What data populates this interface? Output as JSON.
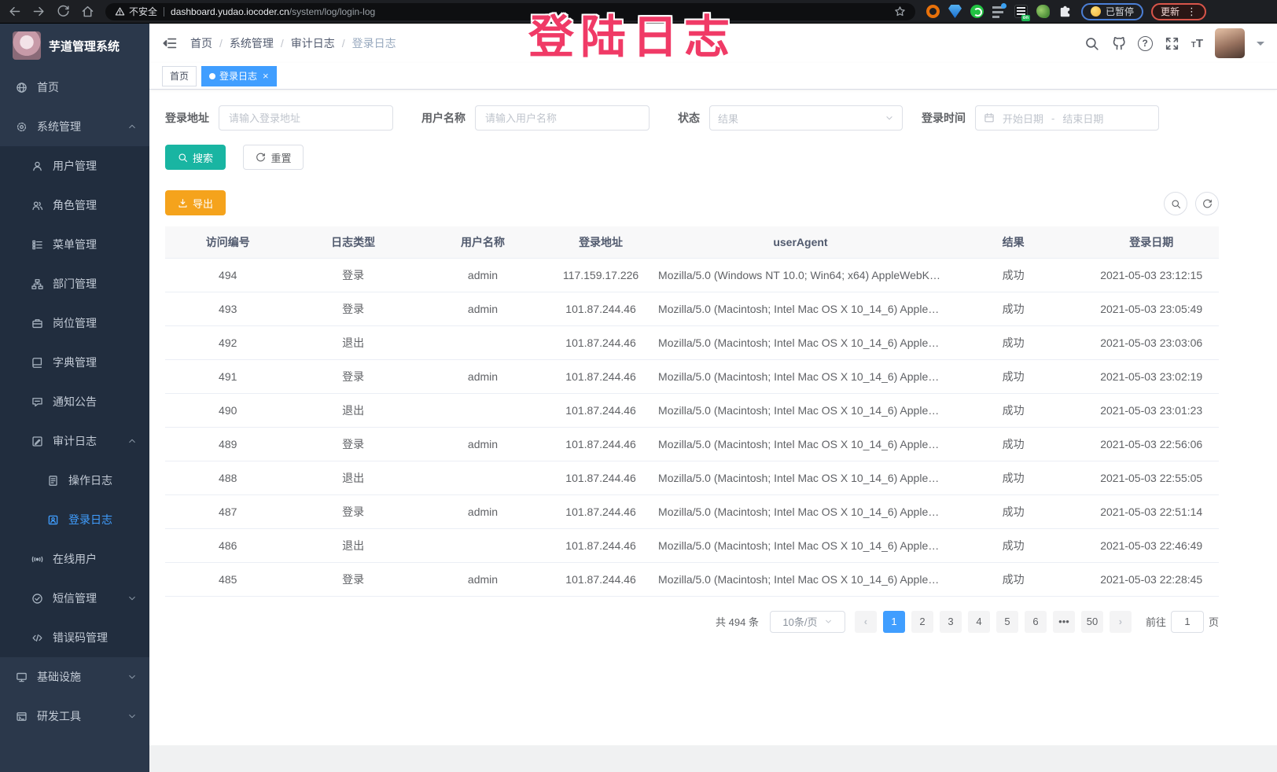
{
  "browser": {
    "security_warning": "不安全",
    "url_domain": "dashboard.yudao.iocoder.cn",
    "url_path": "/system/log/login-log",
    "paused_chip": "已暂停",
    "update_button": "更新",
    "extensions": [
      "ext-orange",
      "ext-gem",
      "ext-green",
      "ext-grid",
      "ext-list",
      "ext-plant",
      "ext-puzzle"
    ]
  },
  "overlay": {
    "title": "登陆日志"
  },
  "sidebar": {
    "logo_title": "芋道管理系统",
    "menu": [
      {
        "name": "home",
        "label": "首页",
        "icon": "home-icon",
        "level": 0
      },
      {
        "name": "system-mgmt",
        "label": "系统管理",
        "icon": "gear-icon",
        "level": 0,
        "chevron": "up"
      },
      {
        "name": "user-mgmt",
        "label": "用户管理",
        "icon": "user-icon",
        "level": 1
      },
      {
        "name": "role-mgmt",
        "label": "角色管理",
        "icon": "roles-icon",
        "level": 1
      },
      {
        "name": "menu-mgmt",
        "label": "菜单管理",
        "icon": "tree-table-icon",
        "level": 1
      },
      {
        "name": "dept-mgmt",
        "label": "部门管理",
        "icon": "tree-icon",
        "level": 1
      },
      {
        "name": "post-mgmt",
        "label": "岗位管理",
        "icon": "post-icon",
        "level": 1
      },
      {
        "name": "dict-mgmt",
        "label": "字典管理",
        "icon": "dict-icon",
        "level": 1
      },
      {
        "name": "notice",
        "label": "通知公告",
        "icon": "message-icon",
        "level": 1
      },
      {
        "name": "audit-log",
        "label": "审计日志",
        "icon": "log-icon",
        "level": 1,
        "chevron": "up"
      },
      {
        "name": "operate-log",
        "label": "操作日志",
        "icon": "form-icon",
        "level": 2
      },
      {
        "name": "login-log",
        "label": "登录日志",
        "icon": "logininfor-icon",
        "level": 2,
        "active": true
      },
      {
        "name": "online-user",
        "label": "在线用户",
        "icon": "online-icon",
        "level": 1
      },
      {
        "name": "sms-mgmt",
        "label": "短信管理",
        "icon": "sms-icon",
        "level": 1,
        "chevron": "down"
      },
      {
        "name": "error-code-mgmt",
        "label": "错误码管理",
        "icon": "code-icon",
        "level": 1
      },
      {
        "name": "infra",
        "label": "基础设施",
        "icon": "infra-icon",
        "level": 0,
        "chevron": "down"
      },
      {
        "name": "dev-tools",
        "label": "研发工具",
        "icon": "tool-icon",
        "level": 0,
        "chevron": "down"
      }
    ]
  },
  "header": {
    "breadcrumb": [
      "首页",
      "系统管理",
      "审计日志",
      "登录日志"
    ]
  },
  "tabs": [
    {
      "name": "home",
      "label": "首页",
      "active": false,
      "closable": false
    },
    {
      "name": "login-log",
      "label": "登录日志",
      "active": true,
      "closable": true
    }
  ],
  "filters": {
    "login_address_label": "登录地址",
    "login_address_placeholder": "请输入登录地址",
    "username_label": "用户名称",
    "username_placeholder": "请输入用户名称",
    "status_label": "状态",
    "status_placeholder": "结果",
    "login_time_label": "登录时间",
    "date_start_placeholder": "开始日期",
    "date_separator": "-",
    "date_end_placeholder": "结束日期",
    "search_button": "搜索",
    "reset_button": "重置",
    "export_button": "导出"
  },
  "table": {
    "columns": [
      "访问编号",
      "日志类型",
      "用户名称",
      "登录地址",
      "userAgent",
      "结果",
      "登录日期"
    ],
    "rows": [
      [
        "494",
        "登录",
        "admin",
        "117.159.17.226",
        "Mozilla/5.0 (Windows NT 10.0; Win64; x64) AppleWebKit...",
        "成功",
        "2021-05-03 23:12:15"
      ],
      [
        "493",
        "登录",
        "admin",
        "101.87.244.46",
        "Mozilla/5.0 (Macintosh; Intel Mac OS X 10_14_6) AppleWe...",
        "成功",
        "2021-05-03 23:05:49"
      ],
      [
        "492",
        "退出",
        "",
        "101.87.244.46",
        "Mozilla/5.0 (Macintosh; Intel Mac OS X 10_14_6) AppleWe...",
        "成功",
        "2021-05-03 23:03:06"
      ],
      [
        "491",
        "登录",
        "admin",
        "101.87.244.46",
        "Mozilla/5.0 (Macintosh; Intel Mac OS X 10_14_6) AppleWe...",
        "成功",
        "2021-05-03 23:02:19"
      ],
      [
        "490",
        "退出",
        "",
        "101.87.244.46",
        "Mozilla/5.0 (Macintosh; Intel Mac OS X 10_14_6) AppleWe...",
        "成功",
        "2021-05-03 23:01:23"
      ],
      [
        "489",
        "登录",
        "admin",
        "101.87.244.46",
        "Mozilla/5.0 (Macintosh; Intel Mac OS X 10_14_6) AppleWe...",
        "成功",
        "2021-05-03 22:56:06"
      ],
      [
        "488",
        "退出",
        "",
        "101.87.244.46",
        "Mozilla/5.0 (Macintosh; Intel Mac OS X 10_14_6) AppleWe...",
        "成功",
        "2021-05-03 22:55:05"
      ],
      [
        "487",
        "登录",
        "admin",
        "101.87.244.46",
        "Mozilla/5.0 (Macintosh; Intel Mac OS X 10_14_6) AppleWe...",
        "成功",
        "2021-05-03 22:51:14"
      ],
      [
        "486",
        "退出",
        "",
        "101.87.244.46",
        "Mozilla/5.0 (Macintosh; Intel Mac OS X 10_14_6) AppleWe...",
        "成功",
        "2021-05-03 22:46:49"
      ],
      [
        "485",
        "登录",
        "admin",
        "101.87.244.46",
        "Mozilla/5.0 (Macintosh; Intel Mac OS X 10_14_6) AppleWe...",
        "成功",
        "2021-05-03 22:28:45"
      ]
    ]
  },
  "pagination": {
    "total_text": "共 494 条",
    "page_size": "10条/页",
    "pages": [
      "1",
      "2",
      "3",
      "4",
      "5",
      "6",
      "•••",
      "50"
    ],
    "active_page": "1",
    "goto_label": "前往",
    "goto_value": "1",
    "goto_suffix": "页"
  },
  "colors": {
    "primary": "#409eff",
    "sidebar_bg": "#2b384b",
    "sidebar_sub_bg": "#212d3e",
    "search_btn": "#19b5a2",
    "export_btn": "#f5a31c",
    "overlay": "#f03a66"
  }
}
